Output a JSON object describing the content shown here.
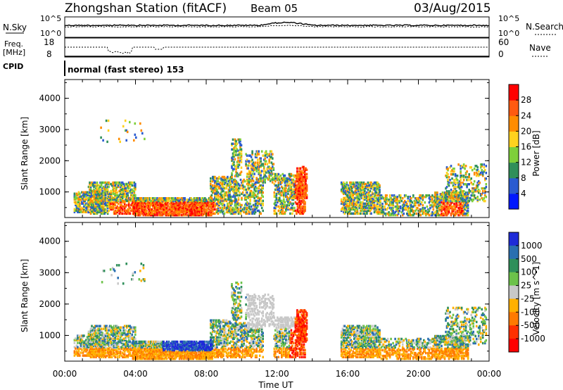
{
  "header": {
    "station": "Zhongshan Station (fitACF)",
    "beam": "Beam 05",
    "date": "03/Aug/2015"
  },
  "strip_labels": {
    "nsky": "N.Sky",
    "nsky_hi": "10^5",
    "nsky_lo": "10^0",
    "nsearch": "N.Search",
    "nsearch_hi": "10^5",
    "nsearch_lo": "10^0",
    "freq_line1": "Freq.",
    "freq_line2": "[MHz]",
    "freq_hi": "18",
    "freq_lo": "8",
    "nave": "Nave",
    "nave_hi": "60",
    "nave_lo": "0",
    "cpid": "CPID",
    "mode": "normal (fast stereo) 153"
  },
  "chart_data": [
    {
      "type": "heatmap",
      "name": "power",
      "ylabel": "Slant Range [km]",
      "xlabel": "",
      "y_ticks": [
        "1000",
        "2000",
        "3000",
        "4000"
      ],
      "y_tick_values": [
        1000,
        2000,
        3000,
        4000
      ],
      "ylim": [
        180,
        4600
      ],
      "xlim_hours": [
        0,
        24
      ],
      "colorbar_label": "Power [dB]",
      "colorbar_ticks": [
        "4",
        "8",
        "12",
        "16",
        "20",
        "24",
        "28"
      ],
      "colorbar_colors": [
        "#0018ff",
        "#2a5bd0",
        "#2f8f5a",
        "#7ecf3a",
        "#ffd21e",
        "#ff8c00",
        "#ff5a10",
        "#ff0000"
      ]
    },
    {
      "type": "heatmap",
      "name": "velocity",
      "ylabel": "Slant Range [km]",
      "xlabel": "Time UT",
      "y_ticks": [
        "1000",
        "2000",
        "3000",
        "4000"
      ],
      "y_tick_values": [
        1000,
        2000,
        3000,
        4000
      ],
      "ylim": [
        180,
        4600
      ],
      "x_ticks": [
        "00:00",
        "04:00",
        "08:00",
        "12:00",
        "16:00",
        "20:00",
        "00:00"
      ],
      "x_tick_values": [
        0,
        4,
        8,
        12,
        16,
        20,
        24
      ],
      "xlim_hours": [
        0,
        24
      ],
      "colorbar_label": "Velocity [m s^-1]",
      "colorbar_ticks": [
        "1000",
        "500",
        "100",
        "25",
        "-25",
        "-100",
        "-500",
        "-1000"
      ],
      "colorbar_colors": [
        "#1e2bd8",
        "#2a6fb0",
        "#2f8f5a",
        "#6cc24a",
        "#c8c8c8",
        "#ffb000",
        "#ff7a00",
        "#ff3000",
        "#ff0000"
      ]
    }
  ]
}
